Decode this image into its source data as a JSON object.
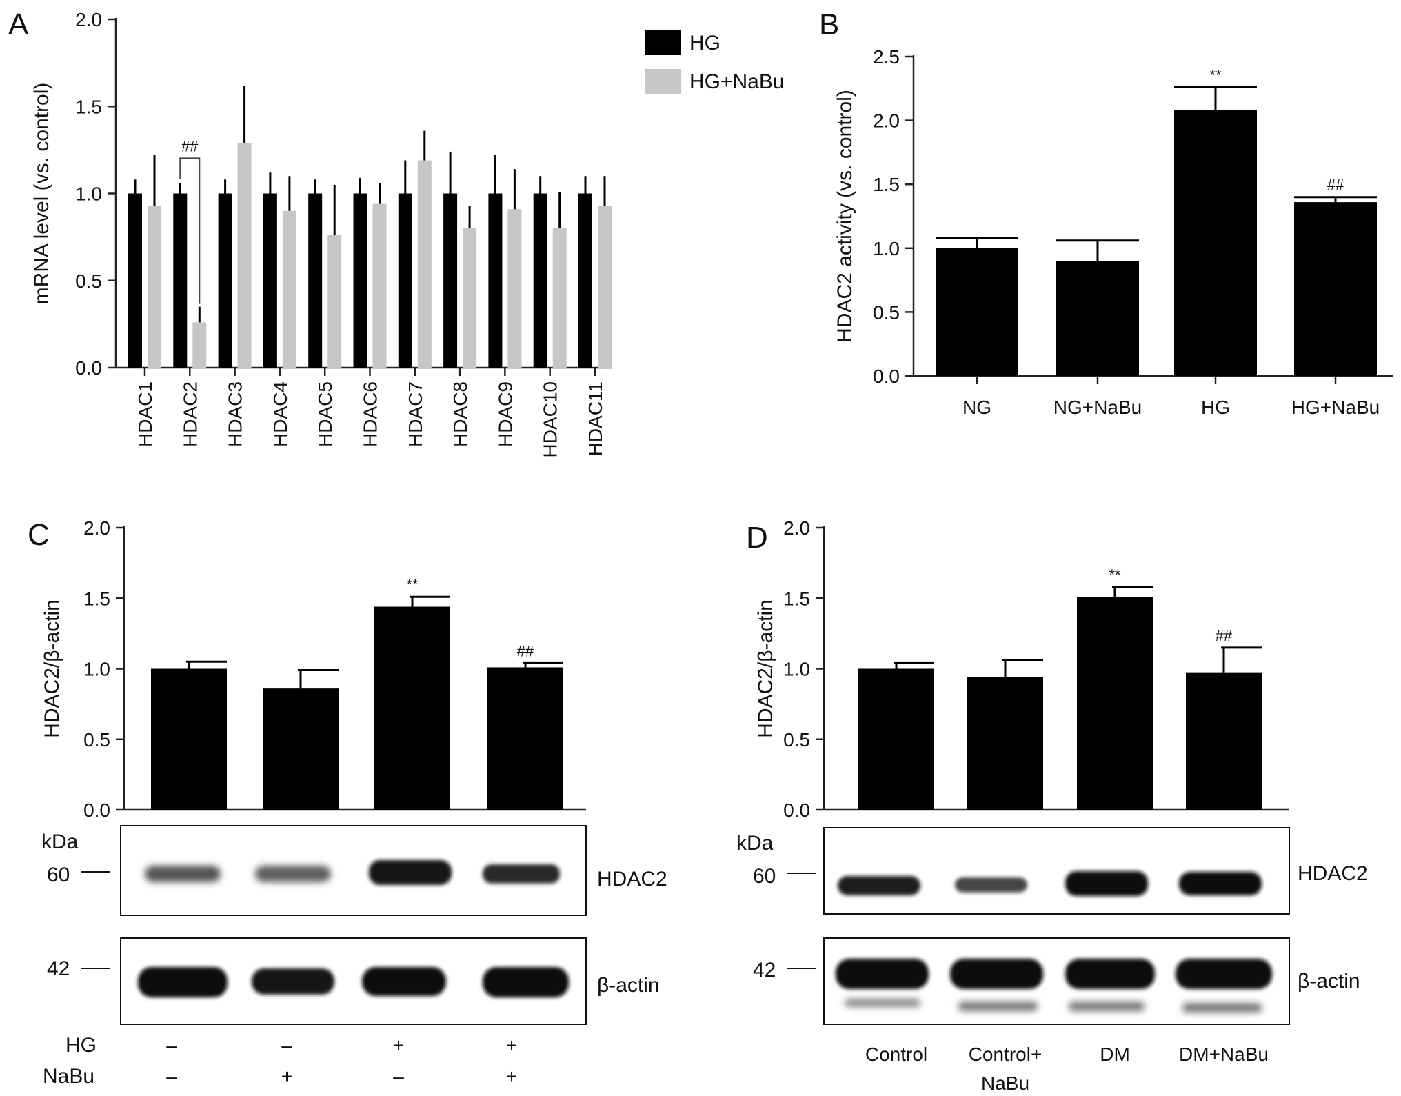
{
  "chart_data": [
    {
      "panel": "A",
      "type": "bar",
      "ylabel": "mRNA level (vs. control)",
      "ylim": [
        0,
        2.0
      ],
      "yticks": [
        "0.0",
        "0.5",
        "1.0",
        "1.5",
        "2.0"
      ],
      "categories": [
        "HDAC1",
        "HDAC2",
        "HDAC3",
        "HDAC4",
        "HDAC5",
        "HDAC6",
        "HDAC7",
        "HDAC8",
        "HDAC9",
        "HDAC10",
        "HDAC11"
      ],
      "series": [
        {
          "name": "HG",
          "color": "#000000",
          "values": [
            1.0,
            1.0,
            1.0,
            1.0,
            1.0,
            1.0,
            1.0,
            1.0,
            1.0,
            1.0,
            1.0
          ],
          "errors": [
            0.08,
            0.06,
            0.08,
            0.12,
            0.08,
            0.09,
            0.19,
            0.24,
            0.22,
            0.1,
            0.1
          ]
        },
        {
          "name": "HG+NaBu",
          "color": "#c6c6c6",
          "values": [
            0.93,
            0.26,
            1.29,
            0.9,
            0.76,
            0.94,
            1.19,
            0.8,
            0.91,
            0.8,
            0.93
          ],
          "errors": [
            0.29,
            0.09,
            0.33,
            0.2,
            0.29,
            0.12,
            0.17,
            0.13,
            0.23,
            0.21,
            0.17
          ]
        }
      ],
      "annotations": [
        {
          "text": "##",
          "category": "HDAC2"
        }
      ],
      "legend": "top-right"
    },
    {
      "panel": "B",
      "type": "bar",
      "ylabel": "HDAC2 activity (vs. control)",
      "ylim": [
        0,
        2.5
      ],
      "yticks": [
        "0.0",
        "0.5",
        "1.0",
        "1.5",
        "2.0",
        "2.5"
      ],
      "categories": [
        "NG",
        "NG+NaBu",
        "HG",
        "HG+NaBu"
      ],
      "values": [
        1.0,
        0.9,
        2.08,
        1.36
      ],
      "errors": [
        0.08,
        0.16,
        0.18,
        0.04
      ],
      "marks": [
        "",
        "",
        "**",
        "##"
      ]
    },
    {
      "panel": "C",
      "type": "bar",
      "ylabel": "HDAC2/β-actin",
      "ylim": [
        0,
        2.0
      ],
      "yticks": [
        "0.0",
        "0.5",
        "1.0",
        "1.5",
        "2.0"
      ],
      "values": [
        1.0,
        0.86,
        1.44,
        1.01
      ],
      "errors": [
        0.05,
        0.13,
        0.07,
        0.03
      ],
      "marks": [
        "",
        "",
        "**",
        "##"
      ],
      "blot": {
        "unit": "kDa",
        "rows": [
          {
            "name": "HDAC2",
            "marker": "60"
          },
          {
            "name": "β-actin",
            "marker": "42"
          }
        ]
      },
      "conditions": [
        {
          "label": "HG",
          "signs": [
            "–",
            "–",
            "+",
            "+"
          ]
        },
        {
          "label": "NaBu",
          "signs": [
            "–",
            "+",
            "–",
            "+"
          ]
        }
      ]
    },
    {
      "panel": "D",
      "type": "bar",
      "ylabel": "HDAC2/β-actin",
      "ylim": [
        0,
        2.0
      ],
      "yticks": [
        "0.0",
        "0.5",
        "1.0",
        "1.5",
        "2.0"
      ],
      "categories": [
        "Control",
        "Control+\nNaBu",
        "DM",
        "DM+NaBu"
      ],
      "values": [
        1.0,
        0.94,
        1.51,
        0.97
      ],
      "errors": [
        0.04,
        0.12,
        0.07,
        0.18
      ],
      "marks": [
        "",
        "",
        "**",
        "##"
      ],
      "blot": {
        "unit": "kDa",
        "rows": [
          {
            "name": "HDAC2",
            "marker": "60"
          },
          {
            "name": "β-actin",
            "marker": "42"
          }
        ]
      }
    }
  ]
}
